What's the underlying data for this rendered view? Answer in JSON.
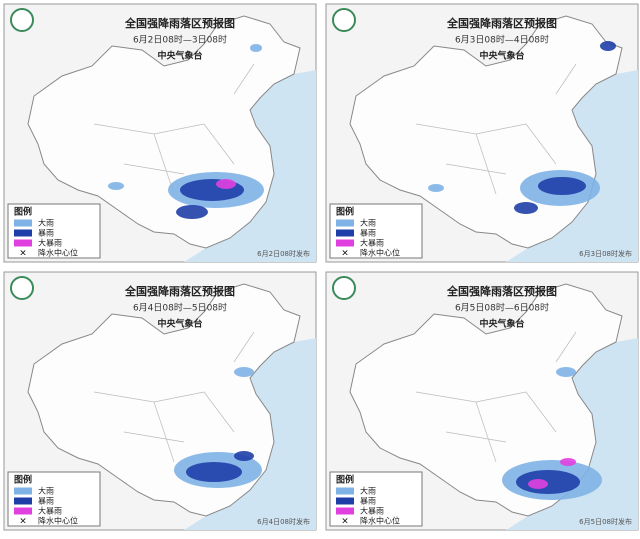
{
  "panels": [
    {
      "title": "全国强降雨落区预报图",
      "period": "6月2日08时—3日08时",
      "agency": "中央气象台",
      "legend_title": "图例",
      "legend": [
        "大雨",
        "暴雨",
        "大暴雨",
        "降水中心位"
      ],
      "issued": "6月2日08时发布"
    },
    {
      "title": "全国强降雨落区预报图",
      "period": "6月3日08时—4日08时",
      "agency": "中央气象台",
      "legend_title": "图例",
      "legend": [
        "大雨",
        "暴雨",
        "大暴雨",
        "降水中心位"
      ],
      "issued": "6月3日08时发布"
    },
    {
      "title": "全国强降雨落区预报图",
      "period": "6月4日08时—5日08时",
      "agency": "中央气象台",
      "legend_title": "图例",
      "legend": [
        "大雨",
        "暴雨",
        "大暴雨",
        "降水中心位"
      ],
      "issued": "6月4日08时发布"
    },
    {
      "title": "全国强降雨落区预报图",
      "period": "6月5日08时—6日08时",
      "agency": "中央气象台",
      "legend_title": "图例",
      "legend": [
        "大雨",
        "暴雨",
        "大暴雨",
        "降水中心位"
      ],
      "issued": "6月5日08时发布"
    }
  ]
}
